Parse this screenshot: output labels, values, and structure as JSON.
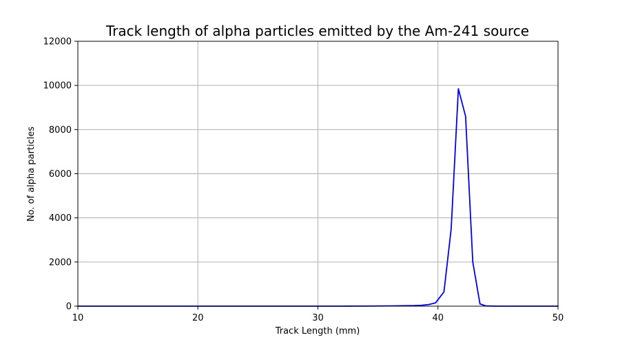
{
  "chart_data": {
    "type": "line",
    "title": "Track length of alpha particles emitted by the Am-241 source",
    "xlabel": "Track Length (mm)",
    "ylabel": "No. of alpha particles",
    "xlim": [
      10,
      50
    ],
    "ylim": [
      0,
      12000
    ],
    "xticks": [
      10,
      20,
      30,
      40,
      50
    ],
    "yticks": [
      0,
      2000,
      4000,
      6000,
      8000,
      10000,
      12000
    ],
    "grid": true,
    "line_color": "#0000ee",
    "series": [
      {
        "x": [
          10,
          11,
          12,
          13,
          14,
          15,
          16,
          17,
          18,
          19,
          20,
          21,
          22,
          23,
          24,
          25,
          26,
          27,
          28,
          29,
          30,
          31,
          32,
          33,
          34,
          35,
          36,
          37,
          38,
          38.6,
          39.2,
          39.8,
          40.5,
          41.1,
          41.7,
          42.3,
          42.9,
          43.5,
          44.0,
          45,
          46,
          47,
          48,
          49,
          50
        ],
        "y": [
          0,
          0,
          0,
          0,
          0,
          0,
          0,
          0,
          0,
          0,
          0,
          0,
          0,
          0,
          0,
          0,
          0,
          0,
          0,
          0,
          0,
          0,
          0,
          3,
          5,
          8,
          12,
          18,
          25,
          40,
          70,
          150,
          650,
          3500,
          9850,
          8600,
          2000,
          100,
          10,
          0,
          0,
          0,
          0,
          0,
          0
        ]
      }
    ]
  }
}
